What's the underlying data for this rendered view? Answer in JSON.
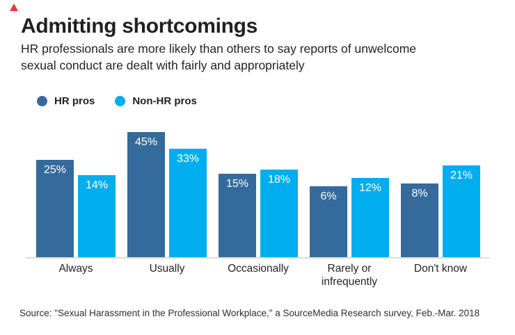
{
  "brand": {
    "triangle_color": "#e8383d"
  },
  "header": {
    "title": "Admitting shortcomings",
    "subtitle": "HR professionals are more likely than others to say reports of unwelcome\nsexual conduct are dealt with fairly and appropriately"
  },
  "legend": [
    {
      "label": "HR pros",
      "color": "#356b9c"
    },
    {
      "label": "Non-HR pros",
      "color": "#00aeef"
    }
  ],
  "chart_data": {
    "type": "bar",
    "categories": [
      "Always",
      "Usually",
      "Occasionally",
      "Rarely or\ninfrequently",
      "Don't know"
    ],
    "series": [
      {
        "name": "HR pros",
        "color": "#356b9c",
        "values": [
          25,
          45,
          15,
          6,
          8
        ]
      },
      {
        "name": "Non-HR pros",
        "color": "#00aeef",
        "values": [
          14,
          33,
          18,
          12,
          21
        ]
      }
    ],
    "value_suffix": "%",
    "data_label_color": "#ffffff",
    "data_label_position": "inside-top",
    "legend_position": "top-left",
    "grid": false,
    "y_axis_visible": false,
    "baseline_axis_color": "#dcdcdc"
  },
  "source": "Source: \"Sexual Harassment in the Professional Workplace,\" a SourceMedia Research survey, Feb.-Mar. 2018"
}
